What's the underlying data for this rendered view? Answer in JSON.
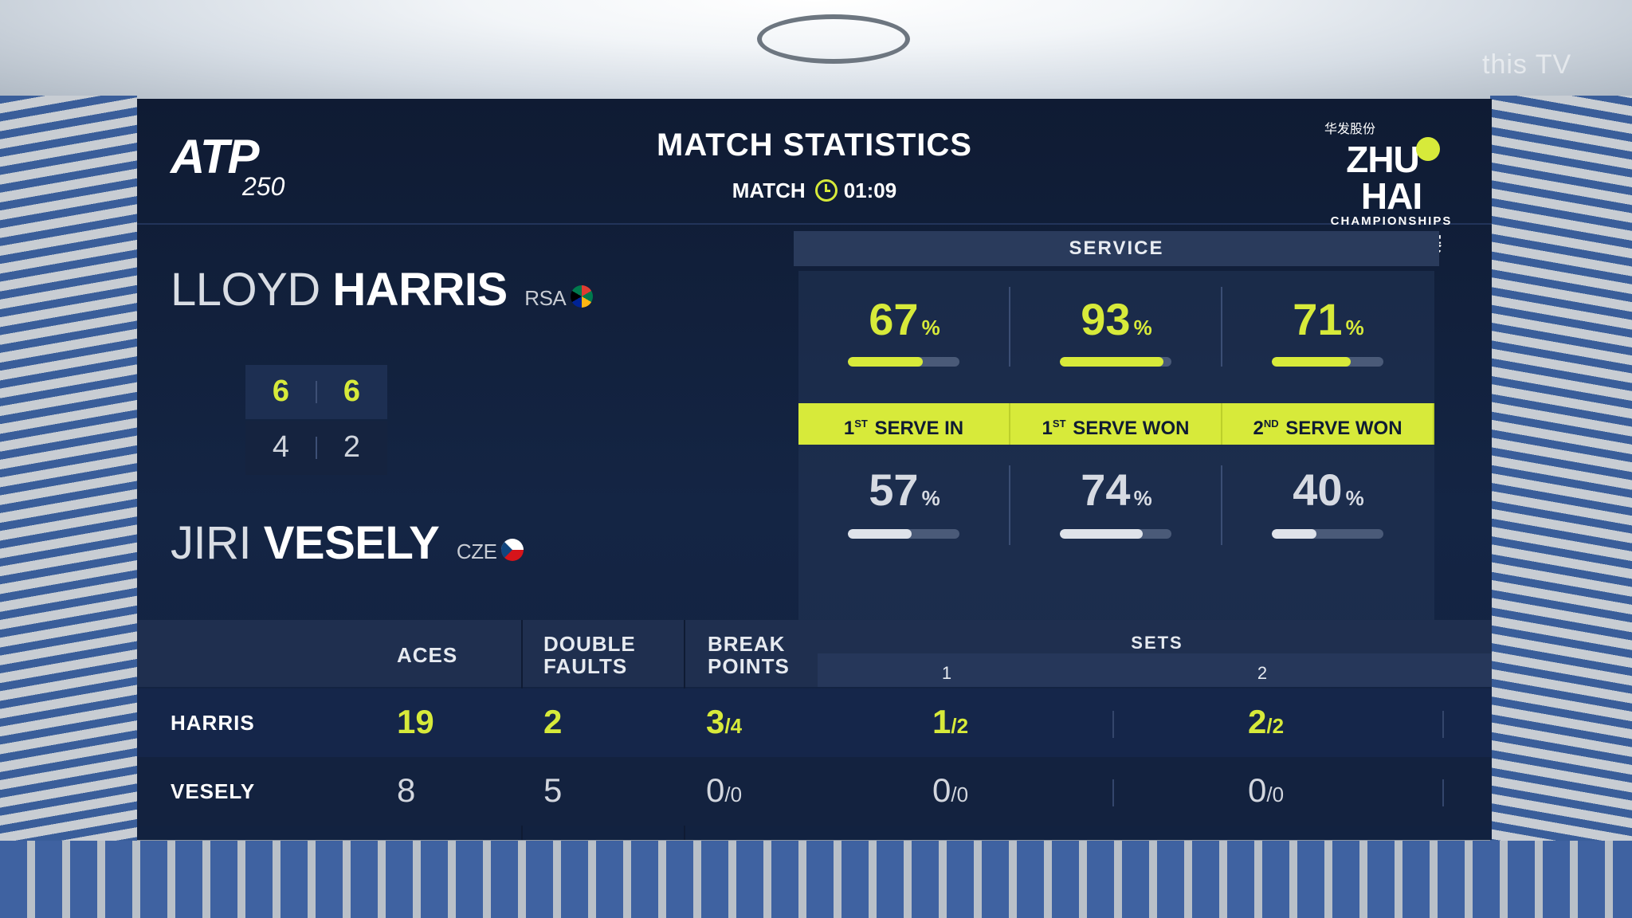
{
  "watermark": "this TV",
  "header": {
    "title": "MATCH STATISTICS",
    "match_label": "MATCH",
    "match_time": "01:09",
    "left_logo_text": "ATP",
    "left_logo_number": "250",
    "right_logo_top": "华发股份",
    "right_logo_main_a": "ZHU",
    "right_logo_main_b": "HAI",
    "right_logo_sub": "CHAMPIONSHIPS",
    "right_logo_cn": "珠海冠军赛"
  },
  "players": [
    {
      "first": "LLOYD",
      "last": "HARRIS",
      "country": "RSA",
      "flag": "rsa-flag",
      "short": "HARRIS"
    },
    {
      "first": "JIRI",
      "last": "VESELY",
      "country": "CZE",
      "flag": "cze-flag",
      "short": "VESELY"
    }
  ],
  "scoreboard": {
    "p1_sets": [
      "6",
      "6"
    ],
    "p2_sets": [
      "4",
      "2"
    ]
  },
  "service": {
    "title": "SERVICE",
    "categories": [
      {
        "num": "1",
        "sup": "ST",
        "label": "SERVE IN",
        "p1": "67",
        "p2": "57",
        "p1_fraction": 0.67,
        "p2_fraction": 0.57
      },
      {
        "num": "1",
        "sup": "ST",
        "label": "SERVE WON",
        "p1": "93",
        "p2": "74",
        "p1_fraction": 0.93,
        "p2_fraction": 0.74
      },
      {
        "num": "2",
        "sup": "ND",
        "label": "SERVE WON",
        "p1": "71",
        "p2": "40",
        "p1_fraction": 0.71,
        "p2_fraction": 0.4
      }
    ],
    "unit": "%"
  },
  "stats": {
    "headers": {
      "aces": "ACES",
      "double_faults_1": "DOUBLE",
      "double_faults_2": "FAULTS",
      "break_points_1": "BREAK",
      "break_points_2": "POINTS",
      "sets": "SETS",
      "set1": "1",
      "set2": "2"
    },
    "rows": [
      {
        "name": "HARRIS",
        "aces": "19",
        "double_faults": "2",
        "bp_won": "3",
        "bp_total": "/4",
        "set1_won": "1",
        "set1_total": "/2",
        "set2_won": "2",
        "set2_total": "/2"
      },
      {
        "name": "VESELY",
        "aces": "8",
        "double_faults": "5",
        "bp_won": "0",
        "bp_total": "/0",
        "set1_won": "0",
        "set1_total": "/0",
        "set2_won": "0",
        "set2_total": "/0"
      }
    ]
  },
  "colors": {
    "accent": "#d7ea3a",
    "panel": "#142544",
    "text": "#ffffff"
  }
}
